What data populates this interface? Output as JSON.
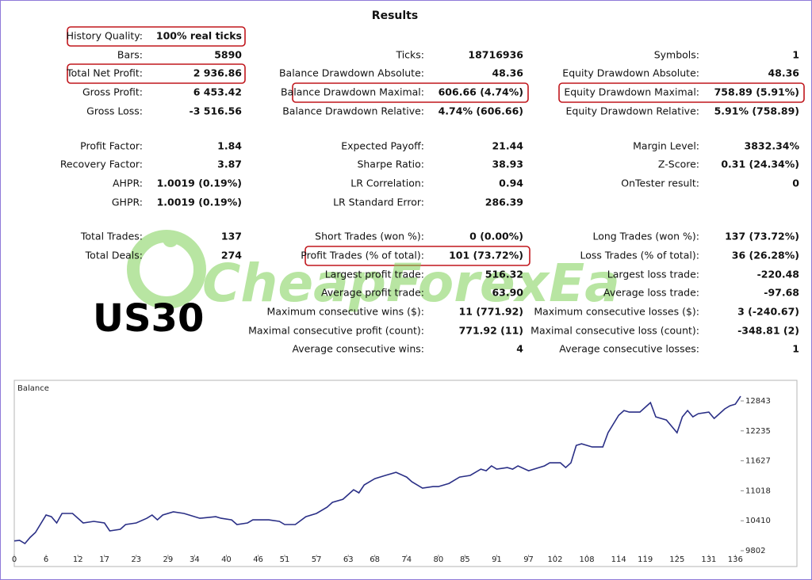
{
  "title": "Results",
  "left": [
    [
      "History Quality:",
      "100% real ticks"
    ],
    [
      "Bars:",
      "5890"
    ],
    [
      "Total Net Profit:",
      "2 936.86"
    ],
    [
      "Gross Profit:",
      "6 453.42"
    ],
    [
      "Gross Loss:",
      "-3 516.56"
    ],
    [
      "Profit Factor:",
      "1.84"
    ],
    [
      "Recovery Factor:",
      "3.87"
    ],
    [
      "AHPR:",
      "1.0019 (0.19%)"
    ],
    [
      "GHPR:",
      "1.0019 (0.19%)"
    ],
    [
      "Total Trades:",
      "137"
    ],
    [
      "Total Deals:",
      "274"
    ]
  ],
  "middle": [
    [
      "Ticks:",
      "18716936"
    ],
    [
      "Balance Drawdown Absolute:",
      "48.36"
    ],
    [
      "Balance Drawdown Maximal:",
      "606.66 (4.74%)"
    ],
    [
      "Balance Drawdown Relative:",
      "4.74% (606.66)"
    ],
    [
      "Expected Payoff:",
      "21.44"
    ],
    [
      "Sharpe Ratio:",
      "38.93"
    ],
    [
      "LR Correlation:",
      "0.94"
    ],
    [
      "LR Standard Error:",
      "286.39"
    ],
    [
      "Short Trades (won %):",
      "0 (0.00%)"
    ],
    [
      "Profit Trades (% of total):",
      "101 (73.72%)"
    ],
    [
      "Largest profit trade:",
      "516.32"
    ],
    [
      "Average profit trade:",
      "63.90"
    ],
    [
      "Maximum consecutive wins ($):",
      "11 (771.92)"
    ],
    [
      "Maximal consecutive profit (count):",
      "771.92 (11)"
    ],
    [
      "Average consecutive wins:",
      "4"
    ]
  ],
  "right": [
    [
      "Symbols:",
      "1"
    ],
    [
      "Equity Drawdown Absolute:",
      "48.36"
    ],
    [
      "Equity Drawdown Maximal:",
      "758.89 (5.91%)"
    ],
    [
      "Equity Drawdown Relative:",
      "5.91% (758.89)"
    ],
    [
      "Margin Level:",
      "3832.34%"
    ],
    [
      "Z-Score:",
      "0.31 (24.34%)"
    ],
    [
      "OnTester result:",
      "0"
    ],
    [
      "Long Trades (won %):",
      "137 (73.72%)"
    ],
    [
      "Loss Trades (% of total):",
      "36 (26.28%)"
    ],
    [
      "Largest loss trade:",
      "-220.48"
    ],
    [
      "Average loss trade:",
      "-97.68"
    ],
    [
      "Maximum consecutive losses ($):",
      "3 (-240.67)"
    ],
    [
      "Maximal consecutive loss (count):",
      "-348.81 (2)"
    ],
    [
      "Average consecutive losses:",
      "1"
    ]
  ],
  "watermark": "CheapForexEa",
  "symbol": "US30",
  "chart_data": {
    "type": "line",
    "title": "Balance",
    "color": "#2a2f86",
    "x": [
      0,
      1,
      2,
      3,
      4,
      6,
      7,
      8,
      9,
      11,
      13,
      15,
      17,
      18,
      20,
      21,
      23,
      25,
      26,
      27,
      28,
      30,
      32,
      33,
      35,
      38,
      39,
      41,
      42,
      44,
      45,
      48,
      50,
      51,
      53,
      55,
      57,
      59,
      60,
      62,
      64,
      65,
      66,
      68,
      70,
      72,
      74,
      75,
      77,
      79,
      80,
      82,
      84,
      86,
      88,
      89,
      90,
      91,
      93,
      94,
      95,
      97,
      100,
      101,
      103,
      104,
      105,
      106,
      107,
      109,
      110,
      111,
      112,
      114,
      115,
      116,
      118,
      119,
      120,
      121,
      123,
      125,
      126,
      127,
      128,
      129,
      131,
      132,
      133,
      134,
      135,
      136,
      137
    ],
    "values": [
      10000,
      10011,
      9947,
      10075,
      10172,
      10526,
      10493,
      10365,
      10558,
      10558,
      10365,
      10397,
      10365,
      10204,
      10236,
      10333,
      10365,
      10461,
      10526,
      10429,
      10526,
      10590,
      10558,
      10526,
      10461,
      10493,
      10461,
      10429,
      10333,
      10365,
      10429,
      10429,
      10397,
      10333,
      10333,
      10493,
      10558,
      10686,
      10783,
      10847,
      11040,
      10976,
      11137,
      11265,
      11330,
      11394,
      11297,
      11201,
      11072,
      11104,
      11104,
      11169,
      11297,
      11330,
      11458,
      11426,
      11523,
      11458,
      11490,
      11458,
      11523,
      11426,
      11523,
      11587,
      11587,
      11490,
      11587,
      11941,
      11973,
      11908,
      11908,
      11908,
      12198,
      12552,
      12648,
      12616,
      12616,
      12712,
      12809,
      12520,
      12455,
      12198,
      12520,
      12648,
      12520,
      12584,
      12616,
      12488,
      12584,
      12680,
      12745,
      12777,
      12938
    ],
    "xlim": [
      0,
      137
    ],
    "ylim": [
      9722,
      13229
    ],
    "xticks": [
      0,
      6,
      12,
      17,
      23,
      29,
      34,
      40,
      46,
      51,
      57,
      63,
      68,
      74,
      80,
      85,
      91,
      97,
      102,
      108,
      114,
      119,
      125,
      131,
      136
    ],
    "yticks": [
      9802,
      10410,
      11018,
      11627,
      12235,
      12843
    ]
  }
}
